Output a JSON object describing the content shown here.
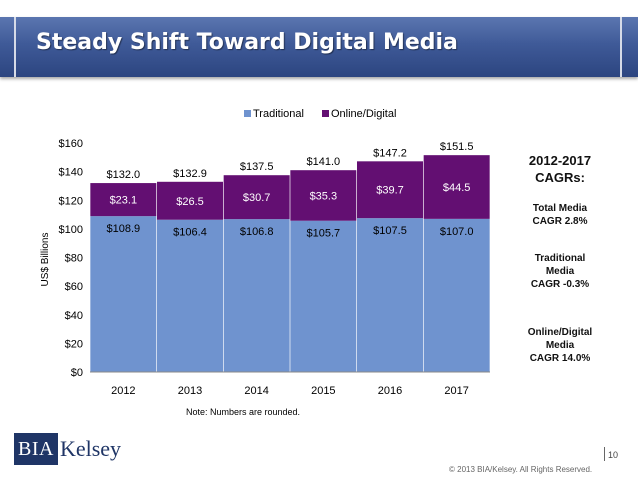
{
  "slide": {
    "title": "Steady Shift Toward Digital Media",
    "note": "Note: Numbers are rounded.",
    "logo_box": "BIA",
    "logo_name": "Kelsey",
    "copyright": "© 2013 BIA/Kelsey. All Rights Reserved.",
    "page_number": "10"
  },
  "cagr": {
    "heading_line1": "2012-2017",
    "heading_line2": "CAGRs:",
    "total_line1": "Total Media",
    "total_line2": "CAGR 2.8%",
    "traditional_line1": "Traditional",
    "traditional_line2": "Media",
    "traditional_line3": "CAGR -0.3%",
    "online_line1": "Online/Digital",
    "online_line2": "Media",
    "online_line3": "CAGR 14.0%"
  },
  "chart_data": {
    "type": "bar",
    "stacked": true,
    "categories": [
      "2012",
      "2013",
      "2014",
      "2015",
      "2016",
      "2017"
    ],
    "series": [
      {
        "name": "Traditional",
        "color": "#6f93cf",
        "values": [
          108.9,
          106.4,
          106.8,
          105.7,
          107.5,
          107.0
        ],
        "labels": [
          "$108.9",
          "$106.4",
          "$106.8",
          "$105.7",
          "$107.5",
          "$107.0"
        ]
      },
      {
        "name": "Online/Digital",
        "color": "#630f72",
        "values": [
          23.1,
          26.5,
          30.7,
          35.3,
          39.7,
          44.5
        ],
        "labels": [
          "$23.1",
          "$26.5",
          "$30.7",
          "$35.3",
          "$39.7",
          "$44.5"
        ]
      }
    ],
    "totals": [
      132.0,
      132.9,
      137.5,
      141.0,
      147.2,
      151.5
    ],
    "total_labels": [
      "$132.0",
      "$132.9",
      "$137.5",
      "$141.0",
      "$147.2",
      "$151.5"
    ],
    "ylabel": "US$ Billions",
    "ylim": [
      0,
      160
    ],
    "yticks": [
      0,
      20,
      40,
      60,
      80,
      100,
      120,
      140,
      160
    ],
    "ytick_labels": [
      "$0",
      "$20",
      "$40",
      "$60",
      "$80",
      "$100",
      "$120",
      "$140",
      "$160"
    ],
    "legend_position": "top-center",
    "grid": false
  }
}
